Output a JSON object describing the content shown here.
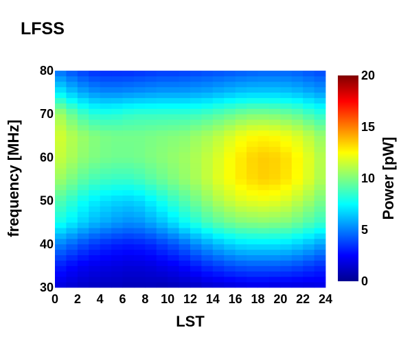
{
  "chart_data": {
    "type": "heatmap",
    "title": "LFSS",
    "xlabel": "LST",
    "ylabel": "frequency [MHz]",
    "colorbar_label": "Power [pW]",
    "colormap": "jet",
    "xlim": [
      0,
      24
    ],
    "ylim": [
      30,
      80
    ],
    "clim": [
      0,
      20
    ],
    "x_ticks": [
      "0",
      "2",
      "4",
      "6",
      "8",
      "10",
      "12",
      "14",
      "16",
      "18",
      "20",
      "22",
      "24"
    ],
    "y_ticks": [
      "30",
      "40",
      "50",
      "60",
      "70",
      "80"
    ],
    "colorbar_ticks": [
      "0",
      "5",
      "10",
      "15",
      "20"
    ],
    "x": [
      0.5,
      1.5,
      2.5,
      3.5,
      4.5,
      5.5,
      6.5,
      7.5,
      8.5,
      9.5,
      10.5,
      11.5,
      12.5,
      13.5,
      14.5,
      15.5,
      16.5,
      17.5,
      18.5,
      19.5,
      20.5,
      21.5,
      22.5,
      23.5
    ],
    "y": [
      30,
      35,
      40,
      45,
      50,
      55,
      60,
      65,
      70,
      75,
      80
    ],
    "z": [
      [
        1.8,
        1.6,
        1.4,
        1.3,
        1.2,
        1.2,
        1.1,
        1.1,
        1.1,
        1.0,
        1.1,
        1.2,
        1.3,
        1.5,
        1.6,
        1.7,
        1.8,
        1.9,
        1.9,
        1.8,
        1.8,
        1.8,
        1.8,
        1.9
      ],
      [
        3.0,
        2.6,
        2.3,
        2.1,
        2.0,
        1.9,
        1.8,
        1.8,
        1.9,
        2.1,
        2.3,
        2.6,
        3.0,
        3.4,
        3.7,
        4.0,
        4.2,
        4.3,
        4.3,
        4.3,
        4.2,
        4.0,
        3.7,
        3.4
      ],
      [
        5.0,
        4.5,
        4.0,
        3.6,
        3.3,
        3.1,
        3.0,
        3.1,
        3.3,
        3.7,
        4.1,
        4.6,
        5.2,
        5.7,
        6.2,
        6.6,
        6.9,
        7.0,
        7.0,
        7.0,
        6.9,
        6.6,
        6.2,
        5.7
      ],
      [
        7.8,
        7.2,
        6.6,
        6.1,
        5.8,
        5.5,
        5.3,
        5.4,
        5.8,
        6.3,
        6.9,
        7.6,
        8.2,
        8.8,
        9.3,
        9.7,
        10.0,
        10.1,
        10.2,
        10.1,
        10.0,
        9.6,
        9.1,
        8.6
      ],
      [
        9.0,
        8.4,
        7.7,
        7.2,
        6.9,
        6.7,
        6.6,
        6.8,
        7.3,
        7.9,
        8.5,
        9.1,
        9.7,
        10.3,
        10.9,
        11.4,
        11.8,
        12.0,
        12.1,
        12.0,
        11.7,
        11.2,
        10.6,
        9.9
      ],
      [
        10.5,
        9.9,
        9.3,
        8.9,
        8.7,
        8.6,
        8.6,
        8.8,
        9.2,
        9.6,
        10.0,
        10.4,
        10.8,
        11.3,
        11.9,
        12.4,
        12.9,
        13.2,
        13.4,
        13.3,
        13.0,
        12.5,
        11.8,
        11.0
      ],
      [
        11.3,
        10.8,
        10.3,
        10.0,
        9.8,
        9.7,
        9.7,
        9.8,
        10.0,
        10.2,
        10.4,
        10.6,
        10.9,
        11.3,
        11.8,
        12.4,
        12.9,
        13.3,
        13.5,
        13.4,
        13.1,
        12.6,
        11.9,
        11.1
      ],
      [
        11.6,
        11.0,
        10.5,
        10.1,
        9.9,
        9.8,
        9.8,
        9.8,
        9.9,
        10.0,
        10.1,
        10.2,
        10.5,
        10.8,
        11.2,
        11.7,
        12.2,
        12.5,
        12.6,
        12.5,
        12.2,
        11.8,
        11.2,
        10.5
      ],
      [
        10.6,
        9.6,
        8.8,
        8.3,
        8.2,
        8.3,
        8.5,
        8.6,
        8.6,
        8.6,
        8.6,
        8.6,
        8.7,
        8.9,
        9.2,
        9.5,
        9.8,
        10.0,
        10.0,
        9.9,
        9.7,
        9.4,
        8.9,
        8.4
      ],
      [
        7.2,
        6.4,
        5.8,
        5.4,
        5.2,
        5.2,
        5.3,
        5.4,
        5.5,
        5.6,
        5.6,
        5.6,
        5.7,
        5.8,
        6.0,
        6.2,
        6.4,
        6.5,
        6.5,
        6.5,
        6.4,
        6.2,
        5.9,
        5.6
      ],
      [
        4.6,
        4.1,
        3.7,
        3.4,
        3.3,
        3.3,
        3.3,
        3.4,
        3.5,
        3.6,
        3.6,
        3.7,
        3.8,
        3.9,
        4.0,
        4.1,
        4.2,
        4.3,
        4.4,
        4.4,
        4.4,
        4.3,
        4.1,
        3.9
      ]
    ]
  }
}
